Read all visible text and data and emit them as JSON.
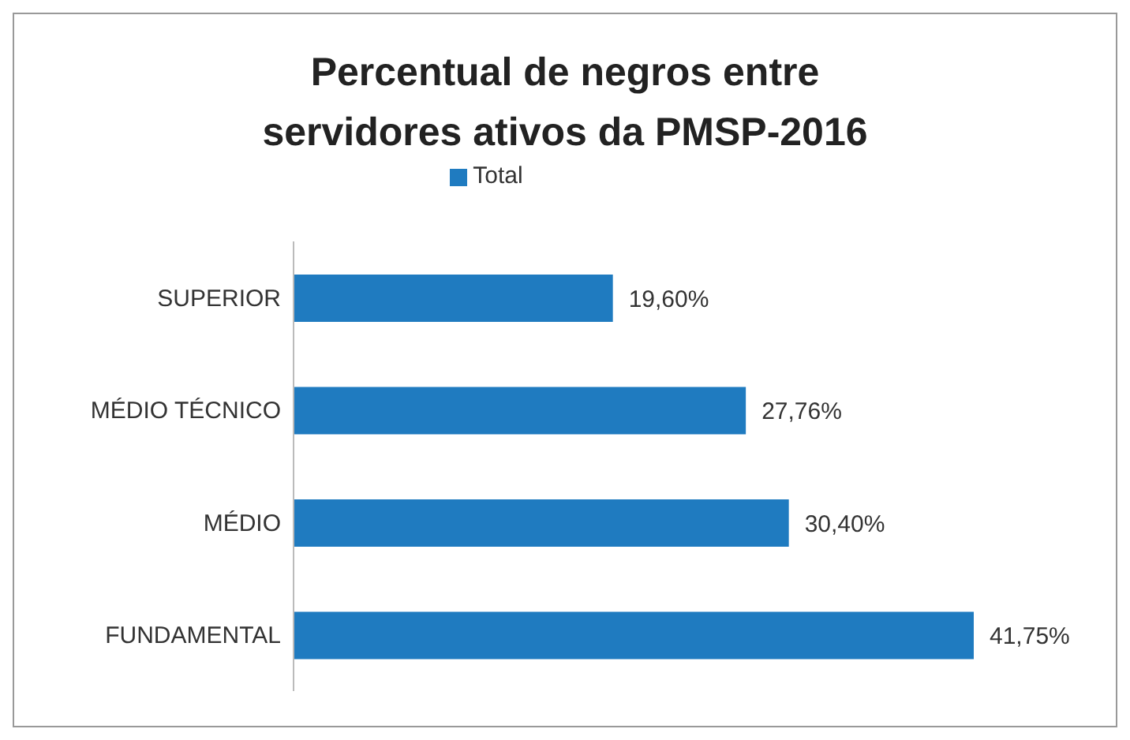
{
  "chart_data": {
    "type": "bar",
    "orientation": "horizontal",
    "title": "Percentual de negros entre servidores ativos da PMSP-2016",
    "categories": [
      "SUPERIOR",
      "MÉDIO TÉCNICO",
      "MÉDIO",
      "FUNDAMENTAL"
    ],
    "series": [
      {
        "name": "Total",
        "color": "#1f7bc0",
        "values": [
          19.6,
          27.76,
          30.4,
          41.75
        ],
        "value_labels": [
          "19,60%",
          "27,76%",
          "30,40%",
          "41,75%"
        ]
      }
    ],
    "legend": "top"
  }
}
